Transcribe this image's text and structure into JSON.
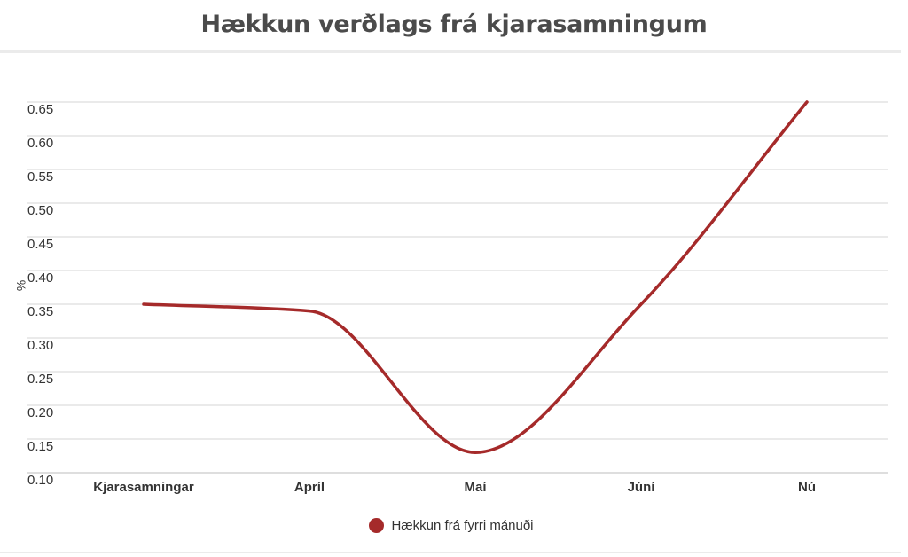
{
  "chart_data": {
    "type": "line",
    "title": "Hækkun verðlags frá kjarasamningum",
    "xlabel": "",
    "ylabel": "%",
    "categories": [
      "Kjarasamningar",
      "Apríl",
      "Maí",
      "Júní",
      "Nú"
    ],
    "series": [
      {
        "name": "Hækkun frá fyrri mánuði",
        "values": [
          0.35,
          0.34,
          0.13,
          0.35,
          0.65
        ],
        "color": "#a52a2a"
      }
    ],
    "yticks": [
      "0.10",
      "0.15",
      "0.20",
      "0.25",
      "0.30",
      "0.35",
      "0.40",
      "0.45",
      "0.50",
      "0.55",
      "0.60",
      "0.65"
    ],
    "ylim": [
      0.1,
      0.65
    ],
    "grid": true,
    "smooth": true,
    "legend_position": "bottom"
  }
}
